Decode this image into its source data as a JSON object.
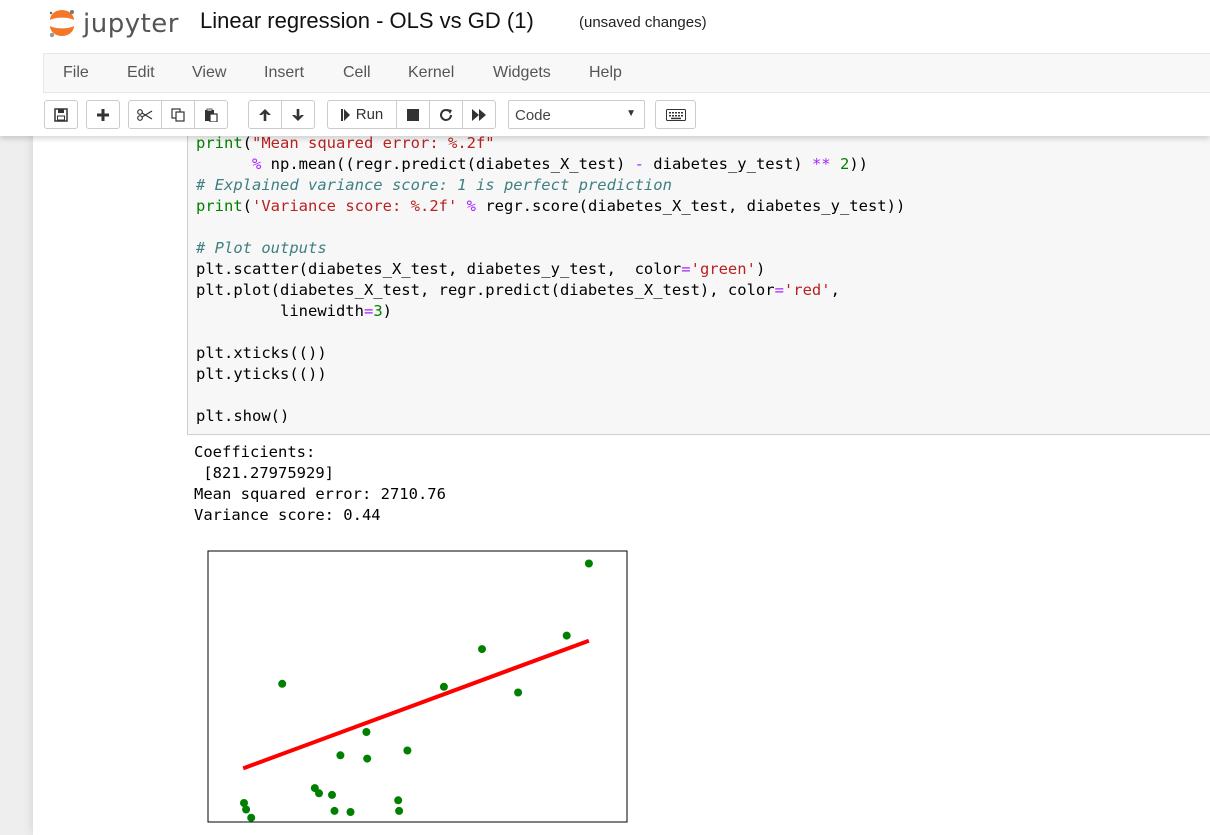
{
  "app": {
    "logo_text": "jupyter",
    "notebook_title": "Linear regression - OLS vs GD (1)",
    "save_status": "(unsaved changes)"
  },
  "menu": [
    "File",
    "Edit",
    "View",
    "Insert",
    "Cell",
    "Kernel",
    "Widgets",
    "Help"
  ],
  "toolbar": {
    "run_label": "Run",
    "cell_type": "Code",
    "icons": [
      "save-icon",
      "add-cell-icon",
      "cut-icon",
      "copy-icon",
      "paste-icon",
      "move-up-icon",
      "move-down-icon",
      "run-icon",
      "stop-icon",
      "restart-icon",
      "fast-forward-icon",
      "keyboard-icon"
    ]
  },
  "code_lines": [
    "print(\"Mean squared error: %.2f\"",
    "      % np.mean((regr.predict(diabetes_X_test) - diabetes_y_test) ** 2))",
    "# Explained variance score: 1 is perfect prediction",
    "print('Variance score: %.2f' % regr.score(diabetes_X_test, diabetes_y_test))",
    "",
    "# Plot outputs",
    "plt.scatter(diabetes_X_test, diabetes_y_test,  color='green')",
    "plt.plot(diabetes_X_test, regr.predict(diabetes_X_test), color='red',",
    "         linewidth=3)",
    "",
    "plt.xticks(())",
    "plt.yticks(())",
    "",
    "plt.show()"
  ],
  "output": {
    "line1": "Coefficients:",
    "line2": " [821.27975929]",
    "line3": "Mean squared error: 2710.76",
    "line4": "Variance score: 0.44"
  },
  "colors": {
    "scatter": "#008000",
    "line": "#ff0000",
    "accent": "#f37726"
  },
  "chart_data": {
    "type": "scatter",
    "title": "",
    "xlabel": "",
    "ylabel": "",
    "grid": false,
    "xticks": [],
    "yticks": [],
    "xlim": [
      0,
      100
    ],
    "ylim": [
      0,
      100
    ],
    "series": [
      {
        "type": "scatter",
        "color": "green",
        "points": [
          [
            8.6,
            7.0
          ],
          [
            9.1,
            4.6
          ],
          [
            25.5,
            12.5
          ],
          [
            17.7,
            51.0
          ],
          [
            31.6,
            24.6
          ],
          [
            26.5,
            10.6
          ],
          [
            29.6,
            10.0
          ],
          [
            37.8,
            33.2
          ],
          [
            38.0,
            23.4
          ],
          [
            30.2,
            4.1
          ],
          [
            34.0,
            3.7
          ],
          [
            45.4,
            8.0
          ],
          [
            47.6,
            26.4
          ],
          [
            56.3,
            49.9
          ],
          [
            65.4,
            63.8
          ],
          [
            74.0,
            47.8
          ],
          [
            85.6,
            68.8
          ],
          [
            90.9,
            95.4
          ],
          [
            45.6,
            4.1
          ],
          [
            10.3,
            1.6
          ]
        ]
      },
      {
        "type": "line",
        "color": "red",
        "points": [
          [
            8.4,
            19.8
          ],
          [
            90.9,
            66.9
          ]
        ]
      }
    ]
  }
}
